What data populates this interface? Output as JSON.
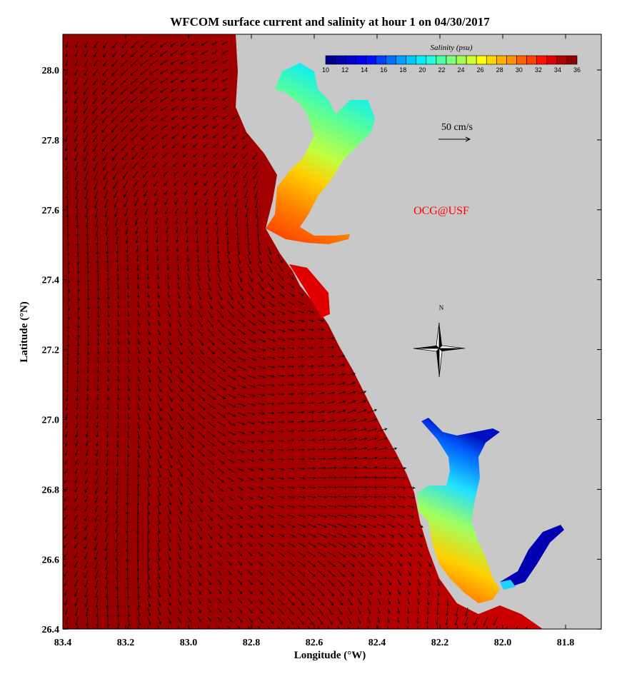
{
  "title": "WFCOM surface current and salinity at hour 1 on 04/30/2017",
  "x_axis": {
    "label": "Longitude (°W)",
    "ticks": [
      "83.4",
      "83.2",
      "83.0",
      "82.8",
      "82.6",
      "82.4",
      "82.2",
      "82.0",
      "81.8"
    ]
  },
  "y_axis": {
    "label": "Latitude (°N)",
    "ticks": [
      "28.0",
      "27.8",
      "27.6",
      "27.4",
      "27.2",
      "27.0",
      "26.8",
      "26.6",
      "26.4"
    ]
  },
  "colorbar": {
    "title": "Salinity (psu)",
    "ticks": [
      "10",
      "12",
      "14",
      "16",
      "18",
      "20",
      "22",
      "24",
      "26",
      "28",
      "30",
      "32",
      "34",
      "36"
    ],
    "range": [
      10,
      36
    ],
    "colors": [
      "#00008f",
      "#0000b0",
      "#0000d0",
      "#0000f0",
      "#0010ff",
      "#0040ff",
      "#0070ff",
      "#00a0ff",
      "#00c8ff",
      "#00f0ff",
      "#20ffe0",
      "#50ffa0",
      "#80ff80",
      "#a0ff50",
      "#d0ff30",
      "#ffff00",
      "#ffd800",
      "#ffb000",
      "#ff9000",
      "#ff6000",
      "#ff4000",
      "#ff1000",
      "#e00000",
      "#b00000",
      "#900000"
    ]
  },
  "scale_arrow": {
    "label": "50 cm/s"
  },
  "credit": "OCG@USF",
  "compass": {
    "label": "N"
  },
  "colors": {
    "ocean": "#b00000",
    "land": "#c8c8c8",
    "credit": "#ff0000"
  }
}
